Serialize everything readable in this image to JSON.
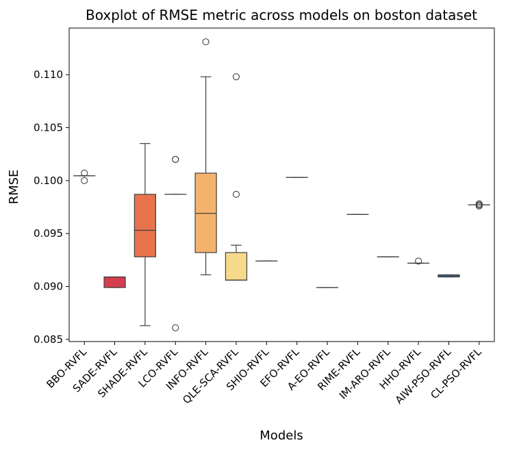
{
  "chart_data": {
    "type": "boxplot",
    "title": "Boxplot of RMSE metric across models on boston dataset",
    "xlabel": "Models",
    "ylabel": "RMSE",
    "ylim": [
      0.0848,
      0.1144
    ],
    "yticks": [
      "0.085",
      "0.090",
      "0.095",
      "0.100",
      "0.105",
      "0.110"
    ],
    "ytick_values": [
      0.085,
      0.09,
      0.095,
      0.1,
      0.105,
      0.11
    ],
    "grid": false,
    "series": [
      {
        "name": "BBO-RVFL",
        "color": "#9e0142",
        "q1": 0.10045,
        "median": 0.10045,
        "q3": 0.10045,
        "whisker_low": 0.10045,
        "whisker_high": 0.10045,
        "outliers": [
          0.1,
          0.1007
        ]
      },
      {
        "name": "SADE-RVFL",
        "color": "#d53e4f",
        "q1": 0.0899,
        "median": 0.0909,
        "q3": 0.0909,
        "whisker_low": 0.0899,
        "whisker_high": 0.0909,
        "outliers": []
      },
      {
        "name": "SHADE-RVFL",
        "color": "#e8734c",
        "q1": 0.0928,
        "median": 0.0953,
        "q3": 0.0987,
        "whisker_low": 0.0863,
        "whisker_high": 0.1035,
        "outliers": []
      },
      {
        "name": "LCO-RVFL",
        "color": "#f4945a",
        "q1": 0.0987,
        "median": 0.0987,
        "q3": 0.0987,
        "whisker_low": 0.0987,
        "whisker_high": 0.0987,
        "outliers": [
          0.102,
          0.102,
          0.0861
        ]
      },
      {
        "name": "INFO-RVFL",
        "color": "#f4b36c",
        "q1": 0.0932,
        "median": 0.0969,
        "q3": 0.1007,
        "whisker_low": 0.0911,
        "whisker_high": 0.1098,
        "outliers": [
          0.1131
        ]
      },
      {
        "name": "QLE-SCA-RVFL",
        "color": "#f6da8c",
        "q1": 0.0906,
        "median": 0.0906,
        "q3": 0.0932,
        "whisker_low": 0.0906,
        "whisker_high": 0.0939,
        "outliers": [
          0.1098,
          0.0987
        ]
      },
      {
        "name": "SHIO-RVFL",
        "color": "#fdf3a9",
        "q1": 0.0924,
        "median": 0.0924,
        "q3": 0.0924,
        "whisker_low": 0.0924,
        "whisker_high": 0.0924,
        "outliers": []
      },
      {
        "name": "EFO-RVFL",
        "color": "#f5fbb0",
        "q1": 0.1003,
        "median": 0.1003,
        "q3": 0.1003,
        "whisker_low": 0.1003,
        "whisker_high": 0.1003,
        "outliers": []
      },
      {
        "name": "A-EO-RVFL",
        "color": "#d8ef9b",
        "q1": 0.0899,
        "median": 0.0899,
        "q3": 0.0899,
        "whisker_low": 0.0899,
        "whisker_high": 0.0899,
        "outliers": []
      },
      {
        "name": "RIME-RVFL",
        "color": "#a9dca3",
        "q1": 0.0968,
        "median": 0.0968,
        "q3": 0.0968,
        "whisker_low": 0.0968,
        "whisker_high": 0.0968,
        "outliers": []
      },
      {
        "name": "IM-ARO-RVFL",
        "color": "#73c5a5",
        "q1": 0.0928,
        "median": 0.0928,
        "q3": 0.0928,
        "whisker_low": 0.0928,
        "whisker_high": 0.0928,
        "outliers": []
      },
      {
        "name": "HHO-RVFL",
        "color": "#4aa0b3",
        "q1": 0.0922,
        "median": 0.0922,
        "q3": 0.0922,
        "whisker_low": 0.0922,
        "whisker_high": 0.0922,
        "outliers": [
          0.0924
        ]
      },
      {
        "name": "AIW-PSO-RVFL",
        "color": "#3a7eb8",
        "q1": 0.0909,
        "median": 0.091,
        "q3": 0.0911,
        "whisker_low": 0.0909,
        "whisker_high": 0.0911,
        "outliers": []
      },
      {
        "name": "CL-PSO-RVFL",
        "color": "#5e4fa2",
        "q1": 0.0977,
        "median": 0.0977,
        "q3": 0.0977,
        "whisker_low": 0.0977,
        "whisker_high": 0.0977,
        "outliers": [
          0.0976,
          0.0977,
          0.0978
        ]
      }
    ]
  }
}
